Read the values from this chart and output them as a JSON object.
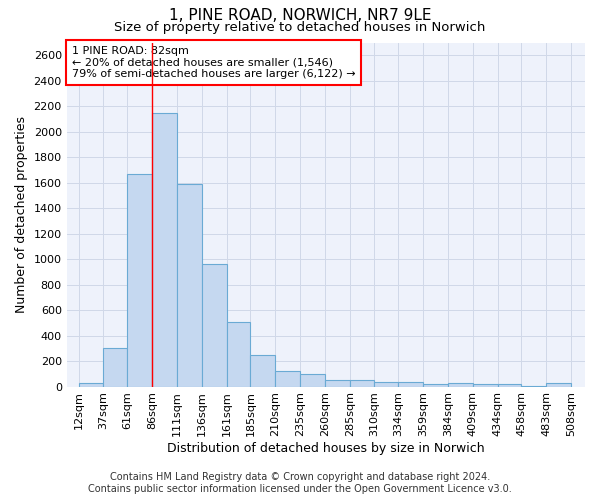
{
  "title": "1, PINE ROAD, NORWICH, NR7 9LE",
  "subtitle": "Size of property relative to detached houses in Norwich",
  "xlabel": "Distribution of detached houses by size in Norwich",
  "ylabel": "Number of detached properties",
  "footer_line1": "Contains HM Land Registry data © Crown copyright and database right 2024.",
  "footer_line2": "Contains public sector information licensed under the Open Government Licence v3.0.",
  "annotation_line1": "1 PINE ROAD: 82sqm",
  "annotation_line2": "← 20% of detached houses are smaller (1,546)",
  "annotation_line3": "79% of semi-detached houses are larger (6,122) →",
  "bar_left_edges": [
    12,
    37,
    61,
    86,
    111,
    136,
    161,
    185,
    210,
    235,
    260,
    285,
    310,
    334,
    359,
    384,
    409,
    434,
    458,
    483
  ],
  "bar_widths": [
    25,
    24,
    25,
    25,
    25,
    25,
    24,
    25,
    25,
    25,
    25,
    25,
    24,
    25,
    25,
    25,
    25,
    24,
    25,
    25
  ],
  "bar_heights": [
    25,
    300,
    1670,
    2150,
    1590,
    960,
    505,
    250,
    120,
    100,
    50,
    50,
    35,
    35,
    20,
    30,
    20,
    20,
    5,
    30
  ],
  "bar_color": "#c5d8f0",
  "bar_edgecolor": "#6aaad4",
  "vline_x": 86,
  "vline_color": "red",
  "ylim": [
    0,
    2700
  ],
  "yticks": [
    0,
    200,
    400,
    600,
    800,
    1000,
    1200,
    1400,
    1600,
    1800,
    2000,
    2200,
    2400,
    2600
  ],
  "xtick_labels": [
    "12sqm",
    "37sqm",
    "61sqm",
    "86sqm",
    "111sqm",
    "136sqm",
    "161sqm",
    "185sqm",
    "210sqm",
    "235sqm",
    "260sqm",
    "285sqm",
    "310sqm",
    "334sqm",
    "359sqm",
    "384sqm",
    "409sqm",
    "434sqm",
    "458sqm",
    "483sqm",
    "508sqm"
  ],
  "xtick_positions": [
    12,
    37,
    61,
    86,
    111,
    136,
    161,
    185,
    210,
    235,
    260,
    285,
    310,
    334,
    359,
    384,
    409,
    434,
    458,
    483,
    508
  ],
  "grid_color": "#d0d8e8",
  "background_color": "#eef2fb",
  "title_fontsize": 11,
  "subtitle_fontsize": 9.5,
  "ylabel_fontsize": 9,
  "xlabel_fontsize": 9,
  "tick_fontsize": 8,
  "footer_fontsize": 7
}
